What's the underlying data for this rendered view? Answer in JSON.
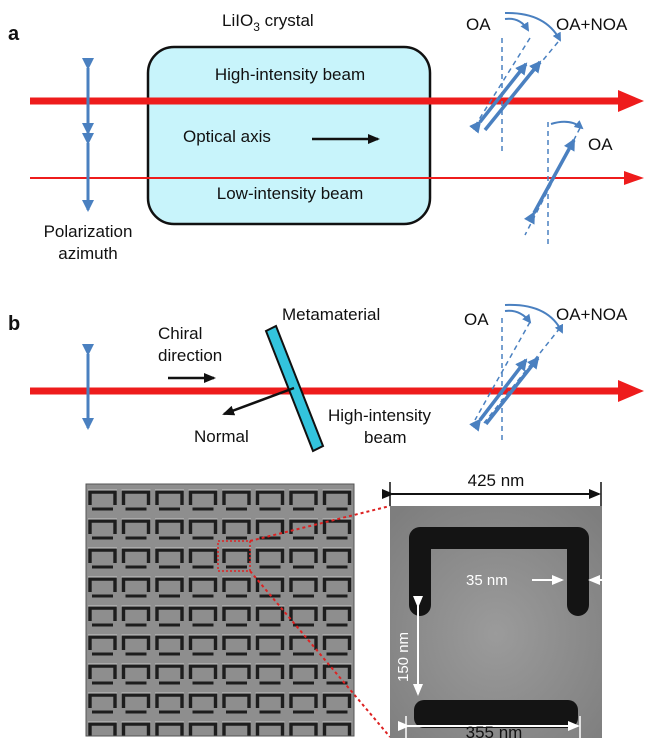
{
  "panel_a": {
    "letter": "a",
    "crystal_label_main": "LiIO",
    "crystal_label_sub": "3",
    "crystal_label_tail": " crystal",
    "high_beam_label": "High-intensity beam",
    "optical_axis_label": "Optical axis",
    "low_beam_label": "Low-intensity beam",
    "polarization_line1": "Polarization",
    "polarization_line2": "azimuth",
    "oa_upper": "OA",
    "oa_noa_upper": "OA+NOA",
    "oa_lower": "OA"
  },
  "panel_b": {
    "letter": "b",
    "metamaterial_label": "Metamaterial",
    "chiral_line1": "Chiral",
    "chiral_line2": "direction",
    "normal_label": "Normal",
    "high_beam_line1": "High-intensity",
    "high_beam_line2": "beam",
    "oa": "OA",
    "oa_noa": "OA+NOA"
  },
  "micrograph": {
    "dim_width_top": "425 nm",
    "dim_gap": "35 nm",
    "dim_height": "150 nm",
    "dim_width_bottom": "355 nm"
  },
  "colors": {
    "beam": "#ee1c1c",
    "crystal_fill": "#c8f4fb",
    "polarization": "#4a80c0",
    "metamaterial": "#33c4dd",
    "zoom_line": "#dd2222"
  }
}
